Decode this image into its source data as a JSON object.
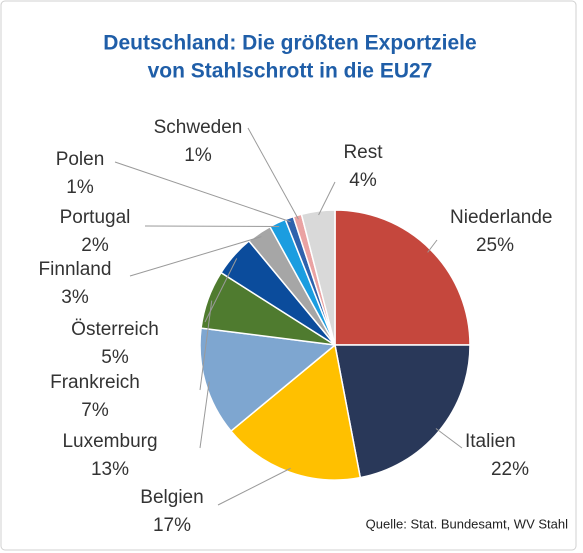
{
  "chart_data": {
    "type": "pie",
    "title": [
      "Deutschland: Die größten Exportziele",
      "von Stahlschrott in die EU27"
    ],
    "categories": [
      "Niederlande",
      "Italien",
      "Belgien",
      "Luxemburg",
      "Frankreich",
      "Österreich",
      "Finnland",
      "Portugal",
      "Polen",
      "Schweden",
      "Rest"
    ],
    "values": [
      25,
      22,
      17,
      13,
      7,
      5,
      3,
      2,
      1,
      1,
      4
    ],
    "value_labels": [
      "25%",
      "22%",
      "17%",
      "13%",
      "7%",
      "5%",
      "3%",
      "2%",
      "1%",
      "1%",
      "4%"
    ],
    "colors": [
      "#c5473d",
      "#293859",
      "#ffc000",
      "#7ea6d0",
      "#4f7b2f",
      "#0b4c9c",
      "#a6a6a6",
      "#1b9de0",
      "#2f62ad",
      "#eaa2a2",
      "#d9d9d9"
    ],
    "source": "Quelle: Stat. Bundesamt, WV Stahl"
  }
}
